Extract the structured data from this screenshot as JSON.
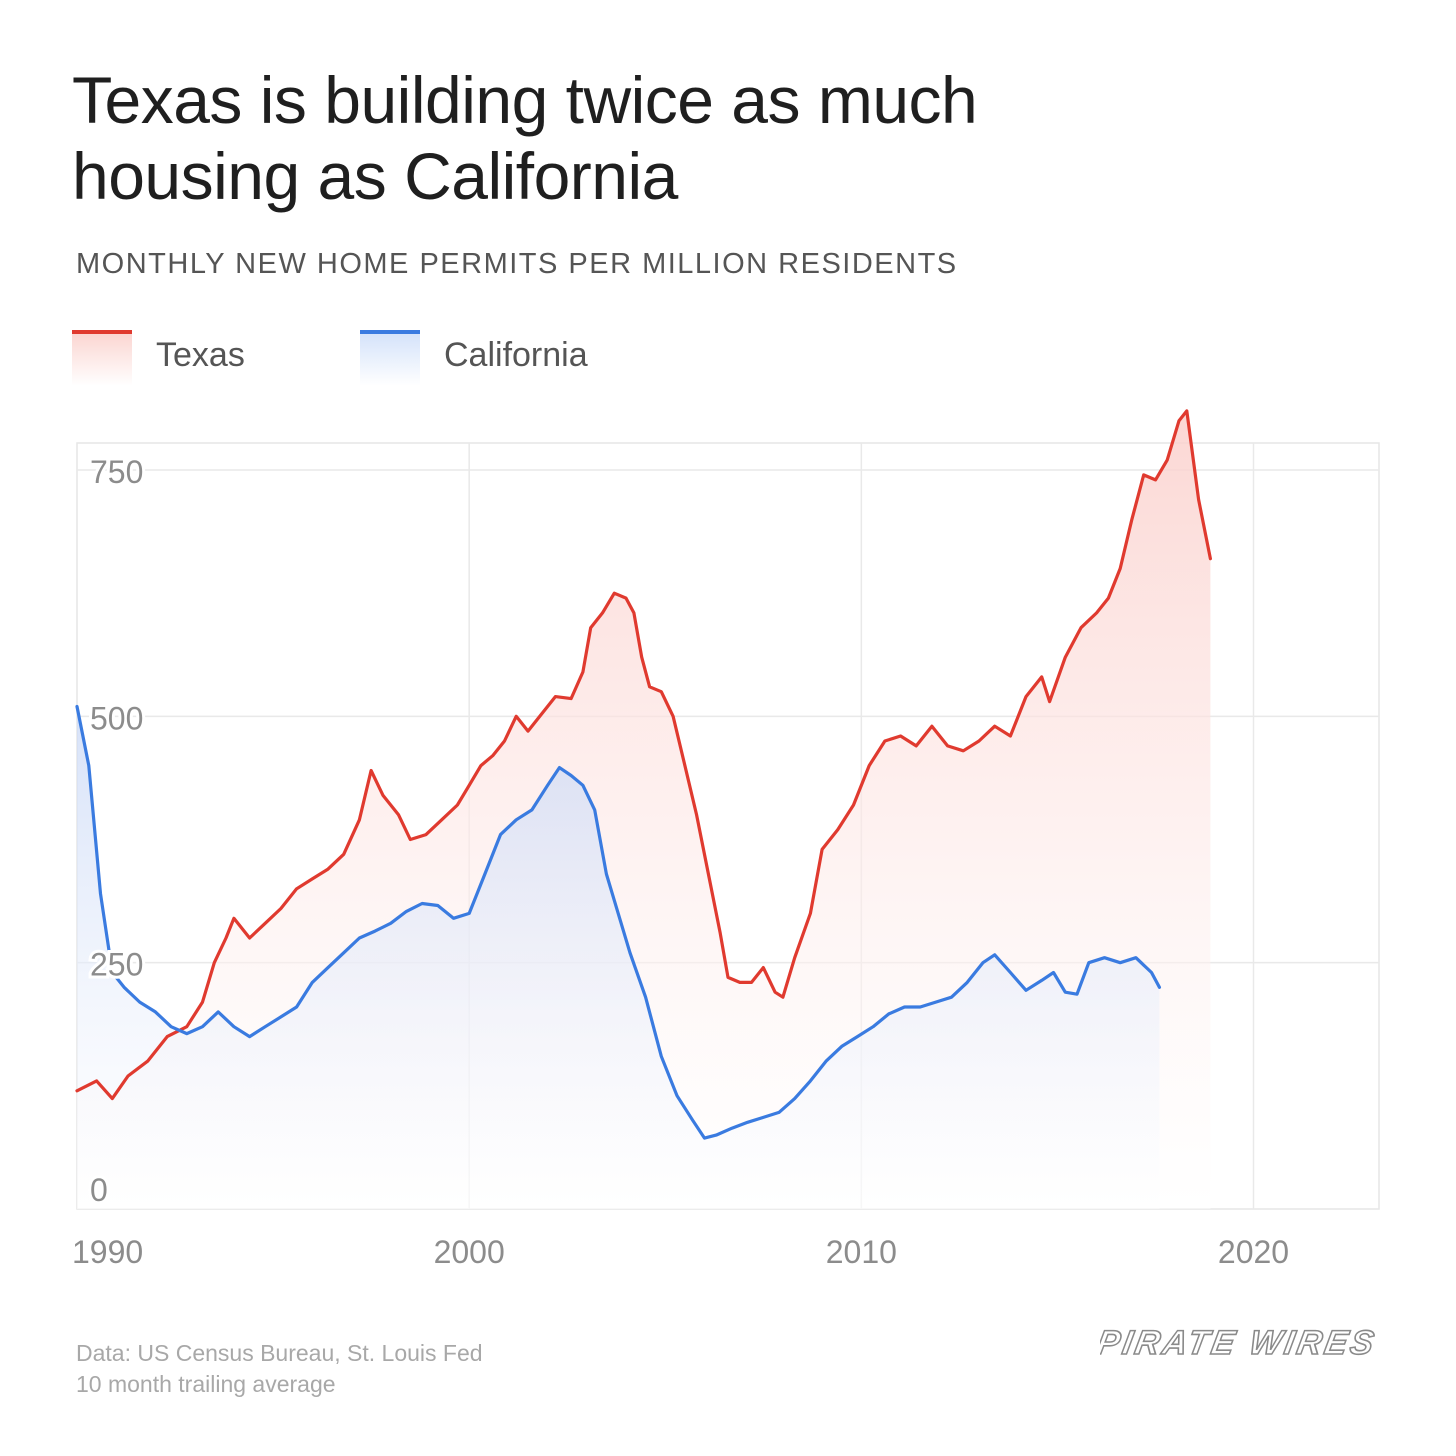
{
  "title_lines": [
    "Texas is building twice as much",
    "housing as California"
  ],
  "subtitle": "MONTHLY NEW HOME PERMITS PER MILLION RESIDENTS",
  "legend": [
    {
      "label": "Texas",
      "color": "#e03a2f"
    },
    {
      "label": "California",
      "color": "#3a7be0"
    }
  ],
  "source_lines": [
    "Data: US Census Bureau, St. Louis Fed",
    "10 month trailing average"
  ],
  "brand": "PIRATE WIRES",
  "chart_data": {
    "type": "area",
    "title": "Texas is building twice as much housing as California",
    "subtitle": "MONTHLY NEW HOME PERMITS PER MILLION RESIDENTS",
    "xlabel": "",
    "ylabel": "",
    "xlim": [
      1990,
      2023.2
    ],
    "ylim": [
      0,
      750
    ],
    "x_ticks": [
      1990,
      2000,
      2010,
      2020
    ],
    "y_ticks": [
      0,
      250,
      500,
      750
    ],
    "grid": true,
    "legend_position": "top-left",
    "series": [
      {
        "name": "Texas",
        "color": "#e03a2f",
        "points": [
          [
            1990.0,
            120
          ],
          [
            1990.5,
            130
          ],
          [
            1990.9,
            112
          ],
          [
            1991.3,
            135
          ],
          [
            1991.8,
            150
          ],
          [
            1992.3,
            175
          ],
          [
            1992.8,
            185
          ],
          [
            1993.2,
            210
          ],
          [
            1993.5,
            250
          ],
          [
            1993.8,
            275
          ],
          [
            1994.0,
            295
          ],
          [
            1994.4,
            275
          ],
          [
            1994.8,
            290
          ],
          [
            1995.2,
            305
          ],
          [
            1995.6,
            325
          ],
          [
            1996.0,
            335
          ],
          [
            1996.4,
            345
          ],
          [
            1996.8,
            360
          ],
          [
            1997.2,
            395
          ],
          [
            1997.5,
            445
          ],
          [
            1997.8,
            420
          ],
          [
            1998.2,
            400
          ],
          [
            1998.5,
            375
          ],
          [
            1998.9,
            380
          ],
          [
            1999.3,
            395
          ],
          [
            1999.7,
            410
          ],
          [
            2000.0,
            430
          ],
          [
            2000.3,
            450
          ],
          [
            2000.6,
            460
          ],
          [
            2000.9,
            475
          ],
          [
            2001.2,
            500
          ],
          [
            2001.5,
            485
          ],
          [
            2001.8,
            500
          ],
          [
            2002.2,
            520
          ],
          [
            2002.6,
            518
          ],
          [
            2002.9,
            545
          ],
          [
            2003.1,
            590
          ],
          [
            2003.4,
            605
          ],
          [
            2003.7,
            625
          ],
          [
            2004.0,
            620
          ],
          [
            2004.2,
            605
          ],
          [
            2004.4,
            560
          ],
          [
            2004.6,
            530
          ],
          [
            2004.9,
            525
          ],
          [
            2005.2,
            500
          ],
          [
            2005.5,
            450
          ],
          [
            2005.8,
            400
          ],
          [
            2006.1,
            340
          ],
          [
            2006.4,
            280
          ],
          [
            2006.6,
            235
          ],
          [
            2006.9,
            230
          ],
          [
            2007.2,
            230
          ],
          [
            2007.5,
            245
          ],
          [
            2007.8,
            220
          ],
          [
            2008.0,
            215
          ],
          [
            2008.3,
            255
          ],
          [
            2008.7,
            300
          ],
          [
            2009.0,
            365
          ],
          [
            2009.4,
            385
          ],
          [
            2009.8,
            410
          ],
          [
            2010.2,
            450
          ],
          [
            2010.6,
            475
          ],
          [
            2011.0,
            480
          ],
          [
            2011.4,
            470
          ],
          [
            2011.8,
            490
          ],
          [
            2012.2,
            470
          ],
          [
            2012.6,
            465
          ],
          [
            2013.0,
            475
          ],
          [
            2013.4,
            490
          ],
          [
            2013.8,
            480
          ],
          [
            2014.2,
            520
          ],
          [
            2014.6,
            540
          ],
          [
            2014.8,
            515
          ],
          [
            2015.2,
            560
          ],
          [
            2015.6,
            590
          ],
          [
            2016.0,
            605
          ],
          [
            2016.3,
            620
          ],
          [
            2016.6,
            650
          ],
          [
            2016.9,
            700
          ],
          [
            2017.2,
            745
          ],
          [
            2017.5,
            740
          ],
          [
            2017.8,
            760
          ],
          [
            2018.1,
            800
          ],
          [
            2018.3,
            810
          ],
          [
            2018.6,
            720
          ],
          [
            2018.9,
            660
          ]
        ]
      },
      {
        "name": "California",
        "color": "#3a7be0",
        "points": [
          [
            1990.0,
            510
          ],
          [
            1990.3,
            450
          ],
          [
            1990.6,
            320
          ],
          [
            1990.9,
            240
          ],
          [
            1991.2,
            225
          ],
          [
            1991.6,
            210
          ],
          [
            1992.0,
            200
          ],
          [
            1992.4,
            185
          ],
          [
            1992.8,
            178
          ],
          [
            1993.2,
            185
          ],
          [
            1993.6,
            200
          ],
          [
            1994.0,
            185
          ],
          [
            1994.4,
            175
          ],
          [
            1994.8,
            185
          ],
          [
            1995.2,
            195
          ],
          [
            1995.6,
            205
          ],
          [
            1996.0,
            230
          ],
          [
            1996.4,
            245
          ],
          [
            1996.8,
            260
          ],
          [
            1997.2,
            275
          ],
          [
            1997.6,
            282
          ],
          [
            1998.0,
            290
          ],
          [
            1998.4,
            302
          ],
          [
            1998.8,
            310
          ],
          [
            1999.2,
            308
          ],
          [
            1999.6,
            295
          ],
          [
            2000.0,
            300
          ],
          [
            2000.4,
            340
          ],
          [
            2000.8,
            380
          ],
          [
            2001.2,
            395
          ],
          [
            2001.6,
            405
          ],
          [
            2002.0,
            430
          ],
          [
            2002.3,
            448
          ],
          [
            2002.6,
            440
          ],
          [
            2002.9,
            430
          ],
          [
            2003.2,
            405
          ],
          [
            2003.5,
            340
          ],
          [
            2003.8,
            300
          ],
          [
            2004.1,
            260
          ],
          [
            2004.5,
            215
          ],
          [
            2004.9,
            155
          ],
          [
            2005.3,
            115
          ],
          [
            2005.7,
            90
          ],
          [
            2006.0,
            72
          ],
          [
            2006.3,
            75
          ],
          [
            2006.7,
            82
          ],
          [
            2007.1,
            88
          ],
          [
            2007.5,
            93
          ],
          [
            2007.9,
            98
          ],
          [
            2008.3,
            112
          ],
          [
            2008.7,
            130
          ],
          [
            2009.1,
            150
          ],
          [
            2009.5,
            165
          ],
          [
            2009.9,
            175
          ],
          [
            2010.3,
            185
          ],
          [
            2010.7,
            198
          ],
          [
            2011.1,
            205
          ],
          [
            2011.5,
            205
          ],
          [
            2011.9,
            210
          ],
          [
            2012.3,
            215
          ],
          [
            2012.7,
            230
          ],
          [
            2013.1,
            250
          ],
          [
            2013.4,
            258
          ],
          [
            2013.8,
            240
          ],
          [
            2014.2,
            222
          ],
          [
            2014.6,
            232
          ],
          [
            2014.9,
            240
          ],
          [
            2015.2,
            220
          ],
          [
            2015.5,
            218
          ],
          [
            2015.8,
            250
          ],
          [
            2016.2,
            255
          ],
          [
            2016.6,
            250
          ],
          [
            2017.0,
            255
          ],
          [
            2017.4,
            240
          ],
          [
            2017.6,
            225
          ]
        ]
      }
    ]
  }
}
